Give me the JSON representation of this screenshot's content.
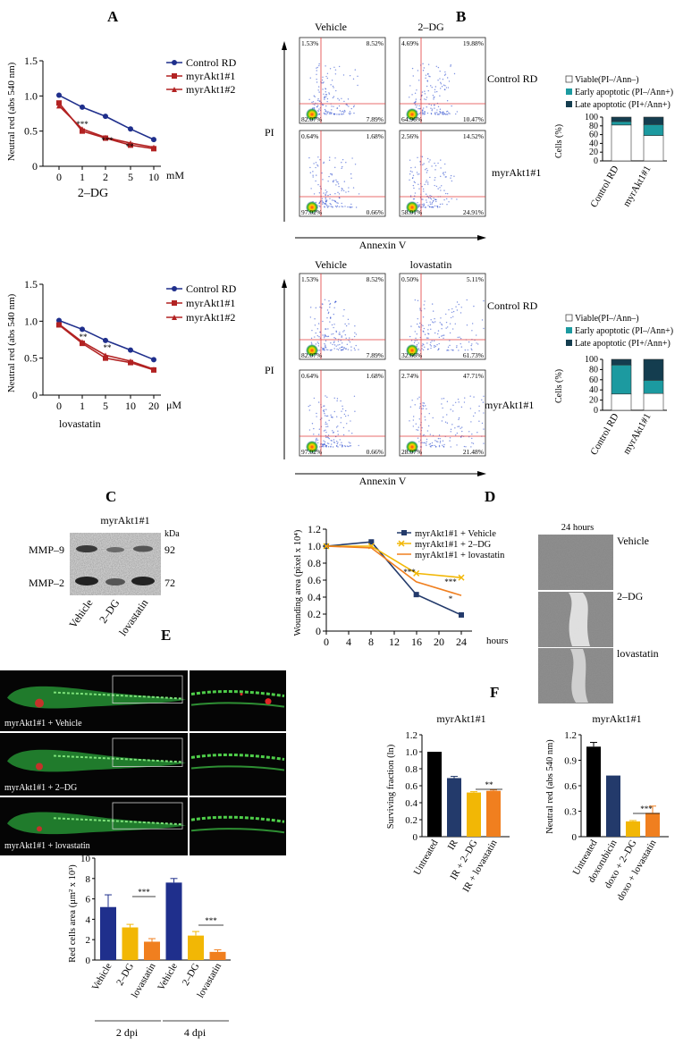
{
  "panels": {
    "A": "A",
    "B": "B",
    "C": "C",
    "D": "D",
    "E": "E",
    "F": "F"
  },
  "colors": {
    "control": "#1f2f8c",
    "myr1": "#b22222",
    "myr2": "#b22222",
    "navy": "#233a6b",
    "yellow": "#f2b705",
    "orange": "#f07f1f",
    "teal": "#1c9aa0",
    "darkteal": "#143d4f"
  },
  "A1": {
    "ylabel": "Neutral red (abs 540 nm)",
    "xlabel": "2–DG",
    "unit": "mM",
    "legend": [
      "Control RD",
      "myrAkt1#1",
      "myrAkt1#2"
    ],
    "stars": [
      "***",
      "***",
      "**"
    ]
  },
  "A2": {
    "ylabel": "Neutral red (abs 540 nm)",
    "xlabel": "lovastatin",
    "unit": "μM",
    "legend": [
      "Control RD",
      "myrAkt1#1",
      "myrAkt1#2"
    ],
    "stars": [
      "**",
      "**"
    ]
  },
  "B": {
    "top_cols": [
      "Vehicle",
      "2–DG"
    ],
    "bottom_cols": [
      "Vehicle",
      "lovastatin"
    ],
    "rows": [
      "Control RD",
      "myrAkt1#1"
    ],
    "ylabel": "PI",
    "xlabel": "Annexin V",
    "top_pct": [
      [
        "1.53%",
        "8.52%",
        "82.07%",
        "7.89%"
      ],
      [
        "4.69%",
        "19.88%",
        "64.96%",
        "10.47%"
      ],
      [
        "0.64%",
        "1.68%",
        "97.02%",
        "0.66%"
      ],
      [
        "2.56%",
        "14.52%",
        "58.01%",
        "24.91%"
      ]
    ],
    "bottom_pct": [
      [
        "1.53%",
        "8.52%",
        "82.07%",
        "7.89%"
      ],
      [
        "0.50%",
        "5.11%",
        "32.66%",
        "61.73%"
      ],
      [
        "0.64%",
        "1.68%",
        "97.02%",
        "0.66%"
      ],
      [
        "2.74%",
        "47.71%",
        "28.07%",
        "21.48%"
      ]
    ],
    "bar_legend": [
      "Viable(PI–/Ann–)",
      "Early apoptotic (PI–/Ann+)",
      "Late apoptotic (PI+/Ann+)"
    ],
    "bar_ylabel": "Cells (%)",
    "bar_categories": [
      "Control RD",
      "myrAkt1#1"
    ]
  },
  "C": {
    "title": "myrAkt1#1",
    "kda": "kDa",
    "bands": [
      "MMP–9",
      "MMP–2"
    ],
    "sizes": [
      "92",
      "72"
    ],
    "lanes": [
      "Vehicle",
      "2–DG",
      "lovastatin"
    ]
  },
  "D": {
    "ylabel": "Wounding area (pixel x 10⁴)",
    "unit": "hours",
    "legend": [
      "myrAkt1#1 + Vehicle",
      "myrAkt1#1 + 2–DG",
      "myrAkt1#1 + lovastatin"
    ],
    "stars": [
      "***",
      "***",
      "*"
    ],
    "img_title": "24 hours",
    "img_labels": [
      "Vehicle",
      "2–DG",
      "lovastatin"
    ]
  },
  "E": {
    "img_labels": [
      "myrAkt1#1 + Vehicle",
      "myrAkt1#1 + 2–DG",
      "myrAkt1#1 + lovastatin"
    ],
    "ylabel": "Red cells area (μm² x 10³)",
    "categories": [
      "Vehicle",
      "2–DG",
      "lovastatin",
      "Vehicle",
      "2–DG",
      "lovastatin"
    ],
    "groups": [
      "2 dpi",
      "4 dpi"
    ],
    "stars": [
      "***",
      "***"
    ]
  },
  "F": {
    "f1_title": "myrAkt1#1",
    "f1_ylabel": "Surviving fraction (ln)",
    "f1_categories": [
      "Untreated",
      "IR",
      "IR + 2–DG",
      "IR + lovastatin"
    ],
    "f1_stars": "**",
    "f2_title": "myrAkt1#1",
    "f2_ylabel": "Neutral red (abs 540 nm)",
    "f2_categories": [
      "Untreated",
      "doxorubicin",
      "doxo + 2–DG",
      "doxo + lovastatin"
    ],
    "f2_stars": "***"
  },
  "chart_data": [
    {
      "type": "line",
      "x": [
        0,
        1,
        2,
        5,
        10
      ],
      "xticks": [
        "0",
        "1",
        "2",
        "5",
        "10"
      ],
      "ylim": [
        0,
        1.5
      ],
      "yticks": [
        "0",
        "0.5",
        "1.0",
        "1.5"
      ],
      "series": [
        {
          "name": "Control RD",
          "values": [
            1.01,
            0.84,
            0.71,
            0.53,
            0.38
          ]
        },
        {
          "name": "myrAkt1#1",
          "values": [
            0.9,
            0.5,
            0.4,
            0.3,
            0.25
          ]
        },
        {
          "name": "myrAkt1#2",
          "values": [
            0.86,
            0.53,
            0.41,
            0.33,
            0.27
          ]
        }
      ]
    },
    {
      "type": "line",
      "x": [
        0,
        1,
        5,
        10,
        20
      ],
      "xticks": [
        "0",
        "1",
        "5",
        "10",
        "20"
      ],
      "ylim": [
        0,
        1.5
      ],
      "yticks": [
        "0",
        "0.5",
        "1.0",
        "1.5"
      ],
      "series": [
        {
          "name": "Control RD",
          "values": [
            1.01,
            0.89,
            0.74,
            0.61,
            0.48
          ]
        },
        {
          "name": "myrAkt1#1",
          "values": [
            0.95,
            0.7,
            0.5,
            0.44,
            0.34
          ]
        },
        {
          "name": "myrAkt1#2",
          "values": [
            0.96,
            0.72,
            0.54,
            0.46,
            0.35
          ]
        }
      ]
    },
    {
      "type": "bar",
      "stacked": true,
      "categories": [
        "Control RD",
        "myrAkt1#1"
      ],
      "ylim": [
        0,
        100
      ],
      "yticks": [
        "0",
        "20",
        "40",
        "60",
        "80",
        "100"
      ],
      "series": [
        {
          "name": "Viable(PI–/Ann–)",
          "values": [
            82,
            58
          ]
        },
        {
          "name": "Early apoptotic (PI–/Ann+)",
          "values": [
            8,
            25
          ]
        },
        {
          "name": "Late apoptotic (PI+/Ann+)",
          "values": [
            10,
            17
          ]
        }
      ]
    },
    {
      "type": "bar",
      "stacked": true,
      "categories": [
        "Control RD",
        "myrAkt1#1"
      ],
      "ylim": [
        0,
        100
      ],
      "yticks": [
        "0",
        "20",
        "40",
        "60",
        "80",
        "100"
      ],
      "series": [
        {
          "name": "Viable(PI–/Ann–)",
          "values": [
            32,
            33
          ]
        },
        {
          "name": "Early apoptotic (PI–/Ann+)",
          "values": [
            57,
            26
          ]
        },
        {
          "name": "Late apoptotic (PI+/Ann+)",
          "values": [
            11,
            41
          ]
        }
      ]
    },
    {
      "type": "line",
      "x": [
        0,
        8,
        16,
        24
      ],
      "xticks": [
        "0",
        "4",
        "8",
        "12",
        "16",
        "20",
        "24"
      ],
      "ylim": [
        0,
        1.2
      ],
      "yticks": [
        "0",
        "0.2",
        "0.4",
        "0.6",
        "0.8",
        "1.0",
        "1.2"
      ],
      "series": [
        {
          "name": "myrAkt1#1 + Vehicle",
          "values": [
            1.0,
            1.05,
            0.43,
            0.19
          ]
        },
        {
          "name": "myrAkt1#1 + 2–DG",
          "values": [
            1.0,
            1.0,
            0.68,
            0.63
          ]
        },
        {
          "name": "myrAkt1#1 + lovastatin",
          "values": [
            1.0,
            0.98,
            0.58,
            0.42
          ]
        }
      ]
    },
    {
      "type": "bar",
      "categories": [
        "Vehicle",
        "2–DG",
        "lovastatin",
        "Vehicle",
        "2–DG",
        "lovastatin"
      ],
      "values": [
        5.2,
        3.2,
        1.8,
        7.6,
        2.4,
        0.8
      ],
      "errors": [
        1.2,
        0.3,
        0.3,
        0.4,
        0.4,
        0.2
      ],
      "ylim": [
        0,
        10
      ],
      "yticks": [
        "0",
        "2",
        "4",
        "6",
        "8",
        "10"
      ]
    },
    {
      "type": "bar",
      "categories": [
        "Untreated",
        "IR",
        "IR + 2–DG",
        "IR + lovastatin"
      ],
      "values": [
        1.0,
        0.69,
        0.52,
        0.54
      ],
      "errors": [
        0,
        0.02,
        0.01,
        0.01
      ],
      "ylim": [
        0,
        1.2
      ],
      "yticks": [
        "0",
        "0.2",
        "0.4",
        "0.6",
        "0.8",
        "1.0",
        "1.2"
      ]
    },
    {
      "type": "bar",
      "categories": [
        "Untreated",
        "doxorubicin",
        "doxo + 2–DG",
        "doxo + lovastatin"
      ],
      "values": [
        1.06,
        0.72,
        0.18,
        0.28
      ],
      "errors": [
        0.05,
        0,
        0.01,
        0.08
      ],
      "ylim": [
        0,
        1.2
      ],
      "yticks": [
        "0",
        "0.3",
        "0.6",
        "0.9",
        "1.2"
      ]
    }
  ]
}
